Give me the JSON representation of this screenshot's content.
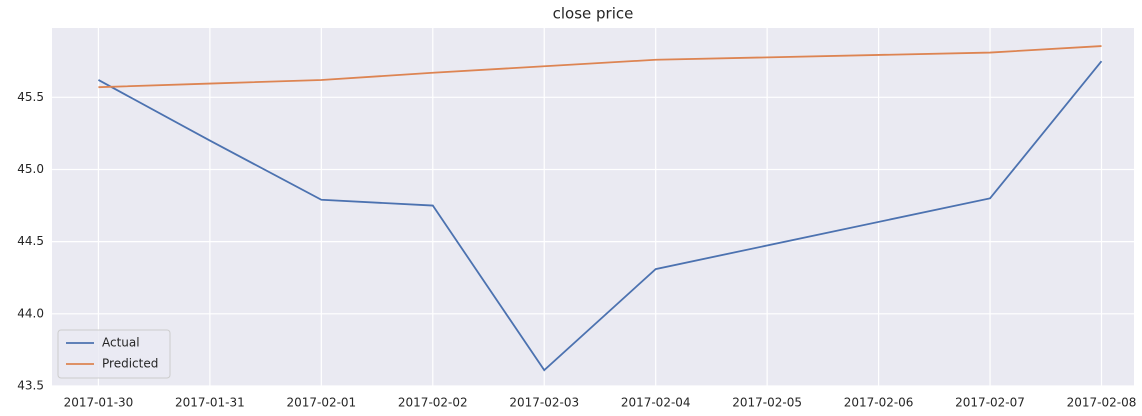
{
  "chart_data": {
    "type": "line",
    "title": "close price",
    "x": [
      "2017-01-30",
      "2017-01-31",
      "2017-02-01",
      "2017-02-02",
      "2017-02-03",
      "2017-02-04",
      "2017-02-07",
      "2017-02-08"
    ],
    "series": [
      {
        "name": "Actual",
        "color": "#4c72b0",
        "values": [
          45.62,
          45.2,
          44.79,
          44.75,
          43.61,
          44.31,
          44.8,
          45.75
        ]
      },
      {
        "name": "Predicted",
        "color": "#dd8452",
        "values": [
          45.57,
          45.595,
          45.62,
          45.67,
          45.715,
          45.76,
          45.81,
          45.855
        ]
      }
    ],
    "xlim": [
      "2017-01-29T14:00",
      "2017-02-08T07:00"
    ],
    "xticks": [
      "2017-01-30",
      "2017-01-31",
      "2017-02-01",
      "2017-02-02",
      "2017-02-03",
      "2017-02-04",
      "2017-02-05",
      "2017-02-06",
      "2017-02-07",
      "2017-02-08"
    ],
    "ylim": [
      43.5,
      45.98
    ],
    "yticks": [
      43.5,
      {
        "value": 44,
        "label": "44.0"
      },
      44.5,
      {
        "value": 45,
        "label": "45.0"
      },
      45.5
    ],
    "grid": true,
    "legend": "lower left"
  }
}
